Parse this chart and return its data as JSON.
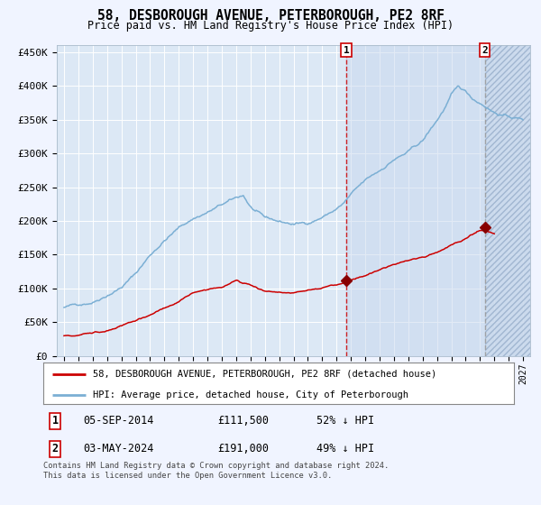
{
  "title": "58, DESBOROUGH AVENUE, PETERBOROUGH, PE2 8RF",
  "subtitle": "Price paid vs. HM Land Registry's House Price Index (HPI)",
  "ylim": [
    0,
    460000
  ],
  "yticks": [
    0,
    50000,
    100000,
    150000,
    200000,
    250000,
    300000,
    350000,
    400000,
    450000
  ],
  "ytick_labels": [
    "£0",
    "£50K",
    "£100K",
    "£150K",
    "£200K",
    "£250K",
    "£300K",
    "£350K",
    "£400K",
    "£450K"
  ],
  "background_color": "#f0f4ff",
  "plot_bg_color": "#dce8f5",
  "hpi_color": "#7bafd4",
  "price_color": "#cc0000",
  "marker_color": "#880000",
  "vline1_color": "#cc0000",
  "vline2_color": "#aaaaaa",
  "sale1_date": 2014.68,
  "sale1_price": 111500,
  "sale2_date": 2024.34,
  "sale2_price": 191000,
  "legend_line1": "58, DESBOROUGH AVENUE, PETERBOROUGH, PE2 8RF (detached house)",
  "legend_line2": "HPI: Average price, detached house, City of Peterborough",
  "note1_num": "1",
  "note1_date": "05-SEP-2014",
  "note1_price": "£111,500",
  "note1_pct": "52% ↓ HPI",
  "note2_num": "2",
  "note2_date": "03-MAY-2024",
  "note2_price": "£191,000",
  "note2_pct": "49% ↓ HPI",
  "footer": "Contains HM Land Registry data © Crown copyright and database right 2024.\nThis data is licensed under the Open Government Licence v3.0.",
  "xstart": 1995,
  "xend": 2027,
  "hpi_anchors_x": [
    1995,
    1996,
    1997,
    1998,
    1999,
    2000,
    2001,
    2002,
    2003,
    2004,
    2005,
    2006,
    2007,
    2007.5,
    2008,
    2009,
    2010,
    2011,
    2012,
    2013,
    2014,
    2014.5,
    2015,
    2016,
    2017,
    2018,
    2019,
    2020,
    2021,
    2021.5,
    2022,
    2022.5,
    2023,
    2023.5,
    2024,
    2024.5,
    2025,
    2026,
    2027
  ],
  "hpi_anchors_y": [
    72000,
    76000,
    82000,
    95000,
    108000,
    128000,
    155000,
    178000,
    196000,
    210000,
    220000,
    230000,
    238000,
    242000,
    225000,
    206000,
    200000,
    196000,
    198000,
    208000,
    220000,
    228000,
    240000,
    258000,
    272000,
    290000,
    300000,
    315000,
    345000,
    362000,
    382000,
    392000,
    385000,
    375000,
    370000,
    365000,
    358000,
    352000,
    348000
  ],
  "price_anchors_x": [
    1995,
    1996,
    1997,
    1998,
    1999,
    2000,
    2001,
    2002,
    2003,
    2004,
    2005,
    2006,
    2007,
    2008,
    2009,
    2010,
    2011,
    2012,
    2013,
    2014,
    2014.68,
    2015,
    2016,
    2017,
    2018,
    2019,
    2020,
    2021,
    2022,
    2023,
    2024,
    2024.34,
    2025
  ],
  "price_anchors_y": [
    30000,
    32000,
    36000,
    40000,
    46000,
    54000,
    62000,
    72000,
    82000,
    92000,
    98000,
    103000,
    113000,
    108000,
    100000,
    98000,
    97000,
    100000,
    104000,
    109000,
    111500,
    115000,
    122000,
    130000,
    138000,
    145000,
    150000,
    158000,
    168000,
    178000,
    190000,
    191000,
    188000
  ]
}
